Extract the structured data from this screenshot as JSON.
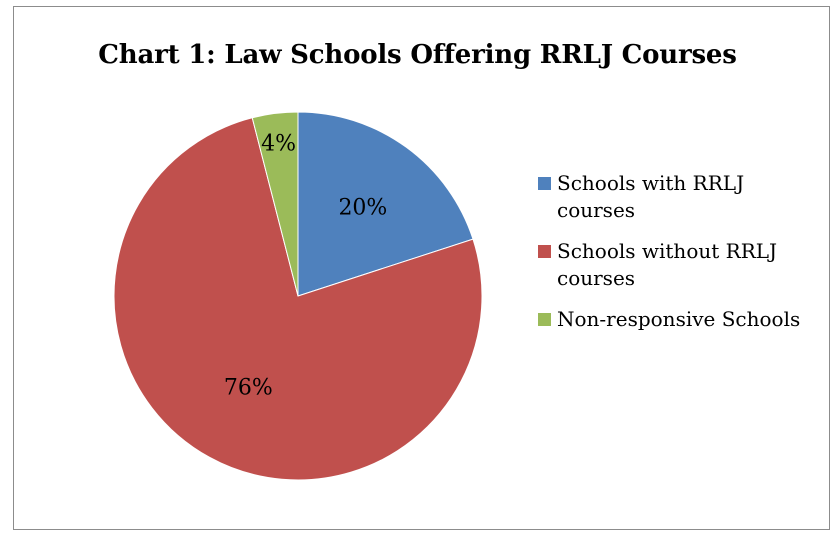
{
  "chart_data": {
    "type": "pie",
    "title": "Chart 1: Law Schools Offering RRLJ Courses",
    "slices": [
      {
        "label": "Schools with RRLJ courses",
        "value": 20,
        "display": "20%",
        "color": "#4f81bd"
      },
      {
        "label": "Schools without RRLJ courses",
        "value": 76,
        "display": "76%",
        "color": "#c0504d"
      },
      {
        "label": "Non-responsive Schools",
        "value": 4,
        "display": "4%",
        "color": "#9bbb59"
      }
    ],
    "start_angle": "12 o'clock",
    "direction": "clockwise",
    "legend_position": "right"
  }
}
